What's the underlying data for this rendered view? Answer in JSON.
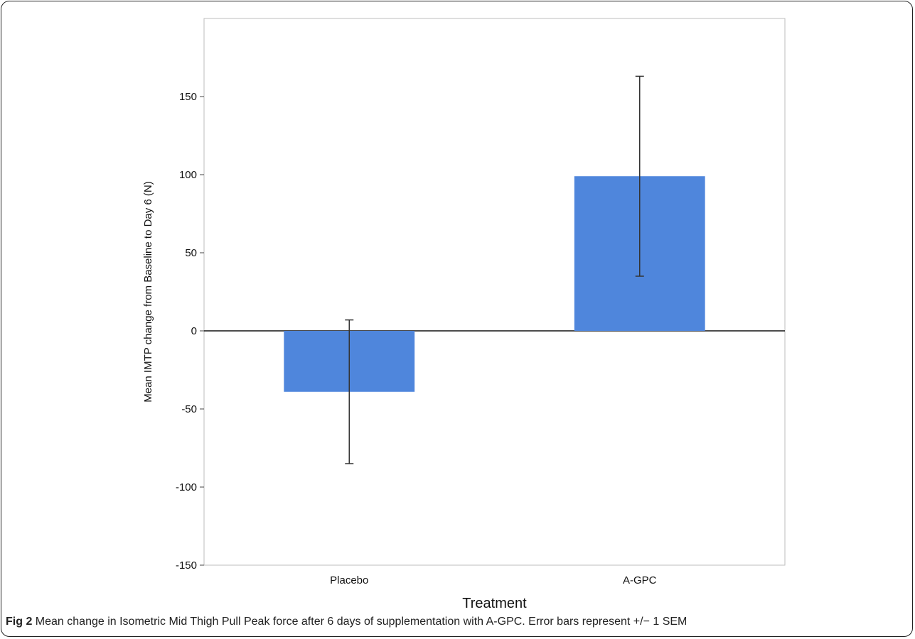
{
  "caption": {
    "label": "Fig 2",
    "text": "Mean change in Isometric Mid Thigh Pull Peak force after 6 days of supplementation with A-GPC. Error bars represent +/− 1 SEM"
  },
  "chart_data": {
    "type": "bar",
    "title": "",
    "xlabel": "Treatment",
    "ylabel": "Mean IMTP change from Baseline to Day 6 (N)",
    "categories": [
      "Placebo",
      "A-GPC"
    ],
    "values": [
      -39,
      99
    ],
    "error_lower": [
      -85,
      35
    ],
    "error_upper": [
      7,
      163
    ],
    "ylim": [
      -150,
      200
    ],
    "yticks": [
      -150,
      -100,
      -50,
      0,
      50,
      100,
      150
    ],
    "grid": false,
    "bar_color": "#4f86dc",
    "legend": "none"
  }
}
